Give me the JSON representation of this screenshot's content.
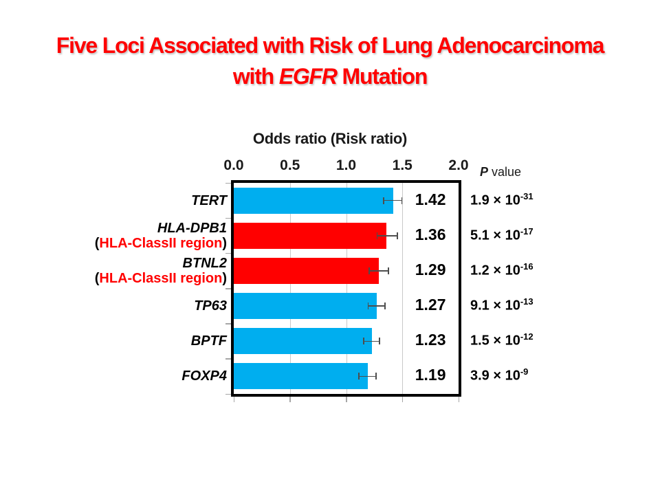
{
  "slide": {
    "title_line1": "Five Loci Associated with Risk of Lung Adenocarcinoma",
    "title_line2_prefix": "with ",
    "title_line2_gene": "EGFR",
    "title_line2_suffix": " Mutation",
    "title_color": "#FF0000"
  },
  "chart_data": {
    "type": "bar",
    "orientation": "horizontal",
    "title": "Odds ratio (Risk ratio)",
    "xlabel": "Odds ratio (Risk ratio)",
    "xlim": [
      0.0,
      2.0
    ],
    "x_tick_labels": [
      "0.0",
      "0.5",
      "1.0",
      "1.5",
      "2.0"
    ],
    "x_tick_values": [
      0,
      0.5,
      1.0,
      1.5,
      2.0
    ],
    "gridlines_at": [
      0.5,
      1.0,
      1.5
    ],
    "legend": "none",
    "p_header": {
      "italic_part": "P",
      "normal_part": " value"
    },
    "colors": {
      "bar_default": "#00AEEF",
      "bar_highlight": "#FF0000",
      "region_text": "#FF0000",
      "grid": "#C9C9C9",
      "tick": "#A6A6A6",
      "error_bar": "#4D4D4D"
    },
    "rows": [
      {
        "gene": "TERT",
        "region_open": "",
        "region": "",
        "region_close": "",
        "value": 1.42,
        "value_label": "1.42",
        "ci_low": 1.33,
        "ci_high": 1.5,
        "bar_color": "#00AEEF",
        "p_mantissa": "1.9",
        "p_times": "×",
        "p_base": "10",
        "p_exponent": "-31"
      },
      {
        "gene": "HLA-DPB1",
        "region_open": "(",
        "region": "HLA-ClassII region",
        "region_close": ")",
        "value": 1.36,
        "value_label": "1.36",
        "ci_low": 1.27,
        "ci_high": 1.46,
        "bar_color": "#FF0000",
        "p_mantissa": "5.1",
        "p_times": "×",
        "p_base": "10",
        "p_exponent": "-17"
      },
      {
        "gene": "BTNL2",
        "region_open": "(",
        "region": "HLA-ClassII region",
        "region_close": ")",
        "value": 1.29,
        "value_label": "1.29",
        "ci_low": 1.2,
        "ci_high": 1.38,
        "bar_color": "#FF0000",
        "p_mantissa": "1.2",
        "p_times": "×",
        "p_base": "10",
        "p_exponent": "-16"
      },
      {
        "gene": "TP63",
        "region_open": "",
        "region": "",
        "region_close": "",
        "value": 1.27,
        "value_label": "1.27",
        "ci_low": 1.19,
        "ci_high": 1.35,
        "bar_color": "#00AEEF",
        "p_mantissa": "9.1",
        "p_times": "×",
        "p_base": "10",
        "p_exponent": "-13"
      },
      {
        "gene": "BPTF",
        "region_open": "",
        "region": "",
        "region_close": "",
        "value": 1.23,
        "value_label": "1.23",
        "ci_low": 1.15,
        "ci_high": 1.3,
        "bar_color": "#00AEEF",
        "p_mantissa": "1.5",
        "p_times": "×",
        "p_base": "10",
        "p_exponent": "-12"
      },
      {
        "gene": "FOXP4",
        "region_open": "",
        "region": "",
        "region_close": "",
        "value": 1.19,
        "value_label": "1.19",
        "ci_low": 1.11,
        "ci_high": 1.27,
        "bar_color": "#00AEEF",
        "p_mantissa": "3.9",
        "p_times": "×",
        "p_base": "10",
        "p_exponent": "-9"
      }
    ]
  }
}
